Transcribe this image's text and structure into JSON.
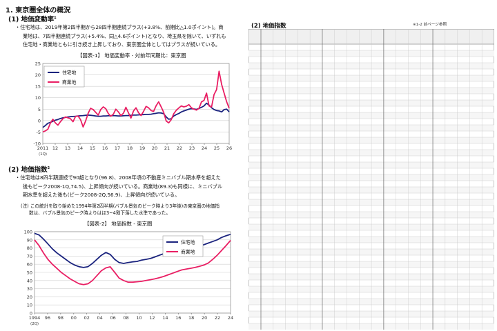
{
  "left": {
    "heading": "1. 東京圏全体の概況",
    "sec1": {
      "title": "(1) 地価変動率",
      "sup": "1",
      "lines": [
        "住宅地は、2019年第2四半期から28四半期連続プラス(+3.8%、前期比△1.0ポイント)。商",
        "業地は、7四半期連続プラス(+5.4%、同△4.6ポイント)となり、埼玉県を除いて、いずれも",
        "住宅地・商業地ともに引き続き上昇しており、東京圏全体としてはプラスが続いている。"
      ],
      "fig_title": "【図表-1】 地価変動率 - 対前年同期比：東京圏"
    },
    "sec2": {
      "title": "(2) 地価指数",
      "sup": "2",
      "lines": [
        "住宅地は8四半期連続で90超となり(96.8)、2008年頃の不動産ミニバブル期水準を超えた",
        "後もピーク2008-1Q,74.5)、上昇傾向が続いている。商業地(89.3)も同様に、ミニバブル",
        "期水準を超えた後も(ピーク2008-2Q,56.9)、上昇傾向が続いている。"
      ],
      "note": [
        "(注) この統計を取り始めた1994年第2四半期(バブル景気のピーク時より3年後)の東京圏の地価指",
        "数は、バブル景気のピーク時よりはほ3~4割下落した水準であった。"
      ],
      "fig_title": "【図表-2】 地価指数 - 東京圏"
    }
  },
  "right": {
    "title": "(2) 地価指数",
    "source": "※1-2 前ページ参照"
  },
  "chart_data": [
    {
      "type": "line",
      "title": "【図表-1】 地価変動率 - 対前年同期比：東京圏",
      "x_tick_labels": [
        "2011",
        "12",
        "13",
        "14",
        "15",
        "16",
        "17",
        "18",
        "19",
        "20",
        "21",
        "22",
        "23",
        "24",
        "25",
        "26"
      ],
      "x_sub_label": "(1Q)",
      "y_tick_labels": [
        "25",
        "20",
        "15",
        "10",
        "5",
        "0",
        "-5",
        "-10"
      ],
      "ylim": [
        -10,
        25
      ],
      "grid": true,
      "legend_position": "top-left",
      "series": [
        {
          "name": "住宅地",
          "color": "#1a237e",
          "values": [
            -3.0,
            -2.2,
            -1.2,
            -0.8,
            -0.3,
            0.2,
            0.5,
            0.9,
            1.2,
            1.4,
            1.6,
            1.7,
            1.8,
            1.9,
            2.0,
            2.1,
            2.2,
            2.3,
            2.4,
            2.3,
            2.2,
            2.0,
            1.9,
            1.9,
            2.0,
            2.0,
            2.1,
            2.1,
            2.2,
            2.1,
            2.0,
            2.0,
            2.1,
            2.2,
            2.2,
            2.3,
            2.4,
            2.4,
            2.5,
            2.6,
            2.6,
            2.7,
            2.7,
            2.8,
            3.0,
            3.2,
            3.4,
            3.3,
            3.0,
            1.6,
            0.6,
            0.8,
            2.0,
            2.6,
            3.1,
            3.8,
            4.2,
            4.6,
            5.0,
            5.2,
            5.1,
            4.9,
            5.3,
            5.8,
            6.4,
            7.6,
            6.8,
            5.6,
            4.8,
            4.4,
            4.2,
            3.8,
            4.8,
            5.0,
            3.8
          ]
        },
        {
          "name": "商業地",
          "color": "#e91e63",
          "values": [
            -5.0,
            -4.5,
            -3.8,
            -1.2,
            0.6,
            -1.0,
            -2.0,
            -0.5,
            0.8,
            1.6,
            1.2,
            0.8,
            -0.5,
            1.8,
            2.0,
            0.4,
            -2.8,
            -0.2,
            3.2,
            5.4,
            4.8,
            3.6,
            2.4,
            4.8,
            6.0,
            5.2,
            3.1,
            1.9,
            2.8,
            5.0,
            3.8,
            2.2,
            3.2,
            5.8,
            3.4,
            1.1,
            4.2,
            5.6,
            3.5,
            2.2,
            4.0,
            6.2,
            5.6,
            4.4,
            4.0,
            6.5,
            8.2,
            6.0,
            3.6,
            -0.2,
            -1.0,
            0.4,
            3.0,
            4.5,
            5.5,
            6.4,
            6.0,
            6.3,
            7.0,
            5.6,
            5.0,
            4.6,
            5.3,
            8.2,
            8.8,
            12.0,
            6.4,
            6.0,
            11.4,
            13.6,
            21.6,
            15.8,
            12.0,
            8.2,
            5.4
          ]
        }
      ]
    },
    {
      "type": "line",
      "title": "【図表-2】 地価指数 - 東京圏",
      "x_tick_labels": [
        "1994",
        "96",
        "98",
        "00",
        "02",
        "04",
        "06",
        "08",
        "10",
        "12",
        "14",
        "16",
        "18",
        "20",
        "22",
        "24"
      ],
      "x_sub_label": "(2Q)",
      "y_tick_labels": [
        "100",
        "90",
        "80",
        "70",
        "60",
        "50",
        "40",
        "30",
        "20",
        "10",
        "0"
      ],
      "ylim": [
        0,
        100
      ],
      "grid": true,
      "legend_position": "top-right",
      "series": [
        {
          "name": "住宅地",
          "color": "#1a237e",
          "values": [
            98.0,
            96.0,
            91.0,
            85.0,
            79.0,
            74.0,
            70.0,
            66.0,
            62.0,
            59.0,
            57.0,
            56.0,
            57.0,
            61.0,
            66.0,
            71.0,
            74.5,
            72.0,
            66.0,
            62.0,
            61.0,
            62.0,
            63.0,
            63.5,
            65.0,
            66.0,
            67.0,
            69.0,
            71.0,
            73.0,
            74.0,
            76.0,
            77.0,
            79.0,
            80.0,
            80.5,
            81.0,
            82.0,
            84.0,
            86.0,
            88.0,
            90.0,
            93.0,
            95.0,
            96.8
          ]
        },
        {
          "name": "商業地",
          "color": "#e91e63",
          "values": [
            90.0,
            83.0,
            74.0,
            66.0,
            60.0,
            55.0,
            50.0,
            46.0,
            42.0,
            39.0,
            36.0,
            35.0,
            36.0,
            40.0,
            46.0,
            52.0,
            55.5,
            56.9,
            50.0,
            43.0,
            40.0,
            38.0,
            38.0,
            38.5,
            39.0,
            40.0,
            41.0,
            42.0,
            43.5,
            45.0,
            47.0,
            49.0,
            51.0,
            53.0,
            54.0,
            55.0,
            56.0,
            57.5,
            59.0,
            61.5,
            66.0,
            71.0,
            77.0,
            83.0,
            89.3
          ]
        }
      ]
    }
  ]
}
